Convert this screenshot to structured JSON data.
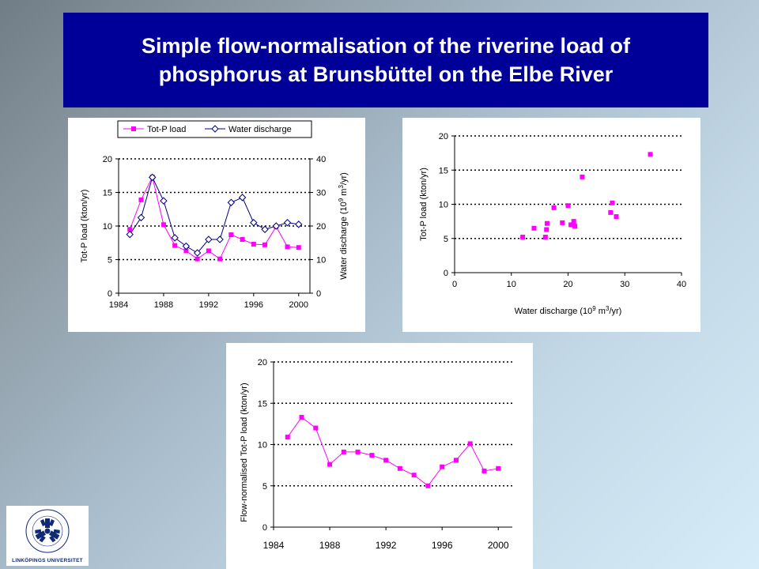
{
  "title": "Simple flow-normalisation of the riverine load of\nphosphorus at Brunsbüttel on the Elbe River",
  "colors": {
    "title_bg": "#000099",
    "load": "#ff00ff",
    "discharge": "#000080",
    "logo": "#102a73"
  },
  "logo": {
    "text": "LINKÖPINGS UNIVERSITET",
    "icon": "university-seal-icon"
  },
  "chart_data": [
    {
      "type": "line",
      "legend": [
        "Tot-P load",
        "Water discharge"
      ],
      "legend_position": "top",
      "ylabel": "Tot-P load (kton/yr)",
      "y2label": "Water discharge (10^9 m^3/yr)",
      "ylim": [
        0,
        20
      ],
      "yticks": [
        0,
        5,
        10,
        15,
        20
      ],
      "y2lim": [
        0,
        40
      ],
      "y2ticks": [
        0,
        10,
        20,
        30,
        40
      ],
      "xlim": [
        1984,
        2001
      ],
      "xticks": [
        1984,
        1988,
        1992,
        1996,
        2000
      ],
      "grid": "horizontal dotted",
      "series": [
        {
          "name": "Tot-P load",
          "axis": "left",
          "marker": "square",
          "color": "#ff00ff",
          "x": [
            1985,
            1986,
            1987,
            1988,
            1989,
            1990,
            1991,
            1992,
            1993,
            1994,
            1995,
            1996,
            1997,
            1998,
            1999,
            2000
          ],
          "values": [
            9.5,
            13.9,
            17.3,
            10.2,
            7.1,
            6.3,
            5.1,
            6.3,
            5.1,
            8.7,
            8.0,
            7.3,
            7.2,
            9.9,
            6.9,
            6.8
          ]
        },
        {
          "name": "Water discharge",
          "axis": "right",
          "marker": "diamond",
          "color": "#000080",
          "x": [
            1985,
            1986,
            1987,
            1988,
            1989,
            1990,
            1991,
            1992,
            1993,
            1994,
            1995,
            1996,
            1997,
            1998,
            1999,
            2000
          ],
          "values": [
            17.5,
            22.5,
            34.5,
            27.5,
            16.5,
            14.0,
            12.0,
            16.0,
            16.0,
            27.0,
            28.5,
            21.0,
            19.0,
            20.0,
            21.0,
            20.5
          ]
        }
      ]
    },
    {
      "type": "scatter",
      "xlabel": "Water discharge (10^9 m^3/yr)",
      "ylabel": "Tot-P load (kton/yr)",
      "xlim": [
        0,
        40
      ],
      "xticks": [
        0,
        10,
        20,
        30,
        40
      ],
      "ylim": [
        0,
        20
      ],
      "yticks": [
        0,
        5,
        10,
        15,
        20
      ],
      "grid": "horizontal dotted",
      "series": [
        {
          "marker": "square",
          "color": "#ff00ff",
          "points": [
            [
              12.0,
              5.2
            ],
            [
              14.0,
              6.5
            ],
            [
              16.0,
              5.2
            ],
            [
              16.2,
              6.3
            ],
            [
              16.3,
              7.2
            ],
            [
              17.5,
              9.5
            ],
            [
              19.0,
              7.3
            ],
            [
              20.0,
              9.8
            ],
            [
              20.5,
              7.0
            ],
            [
              21.0,
              7.5
            ],
            [
              21.0,
              7.0
            ],
            [
              21.2,
              6.8
            ],
            [
              22.5,
              14.0
            ],
            [
              27.5,
              8.8
            ],
            [
              27.8,
              10.2
            ],
            [
              28.5,
              8.2
            ],
            [
              34.5,
              17.3
            ]
          ]
        }
      ]
    },
    {
      "type": "line",
      "ylabel": "Flow-normalised Tot-P load (kton/yr)",
      "ylim": [
        0,
        20
      ],
      "yticks": [
        0,
        5,
        10,
        15,
        20
      ],
      "xlim": [
        1984,
        2001
      ],
      "xticks": [
        1984,
        1988,
        1992,
        1996,
        2000
      ],
      "grid": "horizontal dotted",
      "series": [
        {
          "marker": "square",
          "color": "#ff00ff",
          "x": [
            1985,
            1986,
            1987,
            1988,
            1989,
            1990,
            1991,
            1992,
            1993,
            1994,
            1995,
            1996,
            1997,
            1998,
            1999,
            2000
          ],
          "values": [
            10.9,
            13.3,
            12.0,
            7.6,
            9.1,
            9.1,
            8.7,
            8.1,
            7.1,
            6.3,
            5.0,
            7.3,
            8.1,
            10.1,
            6.8,
            7.1
          ]
        }
      ]
    }
  ]
}
